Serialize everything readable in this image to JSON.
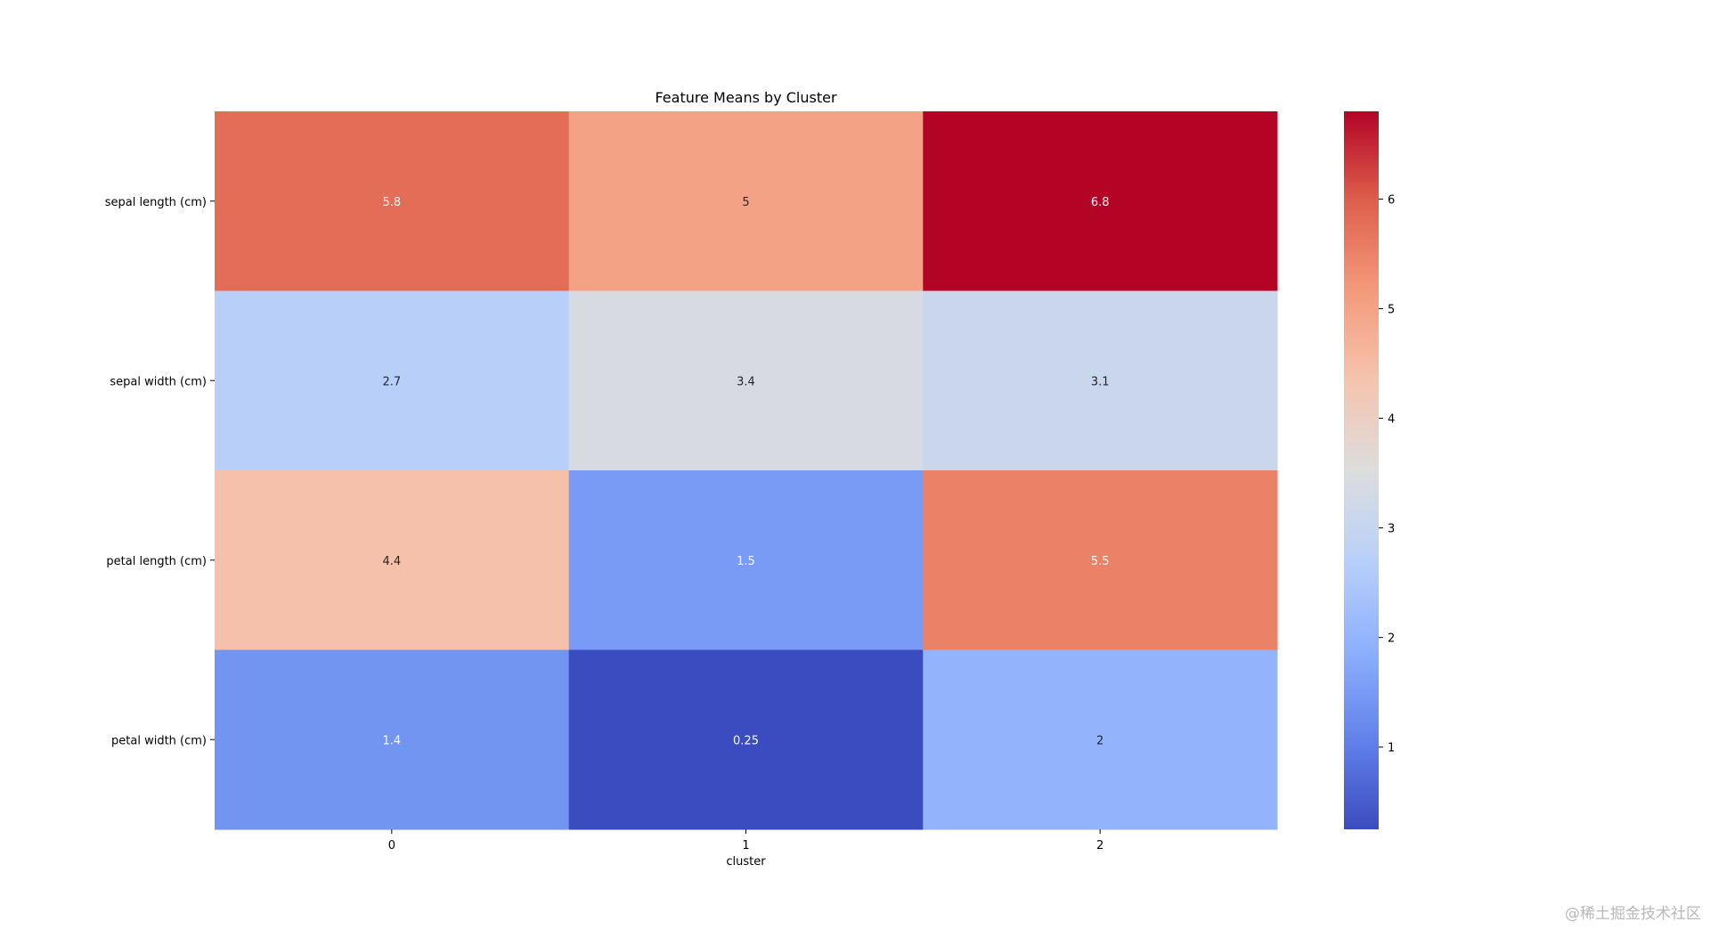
{
  "chart_data": {
    "type": "heatmap",
    "title": "Feature Means by Cluster",
    "xlabel": "cluster",
    "ylabel": "",
    "x_categories": [
      "0",
      "1",
      "2"
    ],
    "y_categories": [
      "sepal length (cm)",
      "sepal width (cm)",
      "petal length (cm)",
      "petal width (cm)"
    ],
    "values": [
      [
        5.8,
        5,
        6.8
      ],
      [
        2.7,
        3.4,
        3.1
      ],
      [
        4.4,
        1.5,
        5.5
      ],
      [
        1.4,
        0.25,
        2
      ]
    ],
    "annotations": [
      [
        "5.8",
        "5",
        "6.8"
      ],
      [
        "2.7",
        "3.4",
        "3.1"
      ],
      [
        "4.4",
        "1.5",
        "5.5"
      ],
      [
        "1.4",
        "0.25",
        "2"
      ]
    ],
    "colormap": "coolwarm",
    "vmin": 0.25,
    "vmax": 6.8,
    "colorbar": {
      "ticks": [
        1,
        2,
        3,
        4,
        5,
        6
      ],
      "tick_labels": [
        "1",
        "2",
        "3",
        "4",
        "5",
        "6"
      ],
      "placement": "right"
    },
    "grid": false
  },
  "watermark": "@稀土掘金技术社区"
}
